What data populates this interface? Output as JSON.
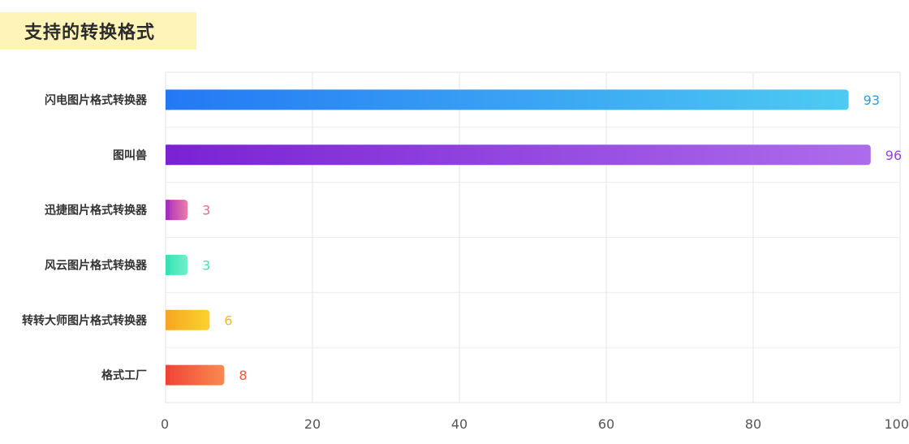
{
  "header": {
    "title": "支持的转换格式"
  },
  "chart_data": {
    "type": "bar",
    "orientation": "horizontal",
    "title": "支持的转换格式",
    "xlabel": "",
    "ylabel": "",
    "xlim": [
      0,
      100
    ],
    "x_ticks": [
      "0",
      "20",
      "40",
      "60",
      "80",
      "100"
    ],
    "grid": true,
    "categories": [
      "闪电图片格式转换器",
      "图叫兽",
      "迅捷图片格式转换器",
      "风云图片格式转换器",
      "转转大师图片格式转换器",
      "格式工厂"
    ],
    "values": [
      93,
      96,
      3,
      3,
      6,
      8
    ],
    "colors": [
      {
        "start": "#2478f5",
        "end": "#4dcbf2",
        "label": "#2a9be0"
      },
      {
        "start": "#7a22d4",
        "end": "#ad6cec",
        "label": "#9a3ee0"
      },
      {
        "start": "#a72fbd",
        "end": "#f07aa8",
        "label": "#e56b96"
      },
      {
        "start": "#35e3b5",
        "end": "#6ff0c8",
        "label": "#4ddbb1"
      },
      {
        "start": "#f5a623",
        "end": "#fcd22e",
        "label": "#f4b82e"
      },
      {
        "start": "#f04438",
        "end": "#f98a4d",
        "label": "#f2553c"
      }
    ]
  }
}
